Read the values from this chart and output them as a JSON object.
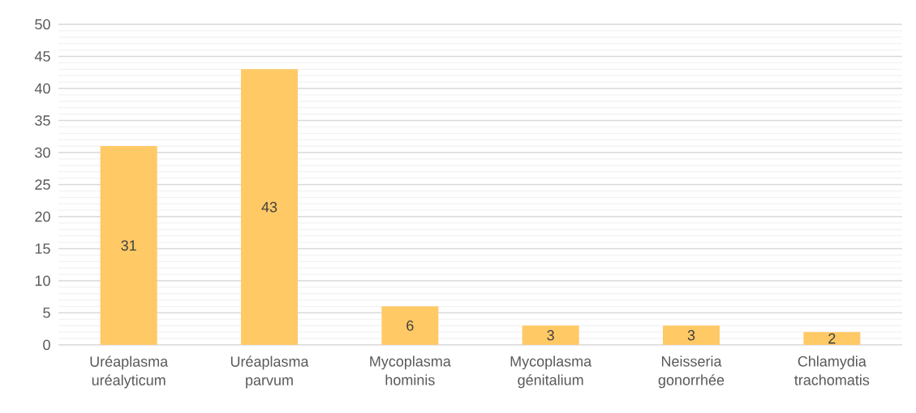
{
  "chart_data": {
    "type": "bar",
    "categories": [
      "Uréaplasma uréalyticum",
      "Uréaplasma parvum",
      "Mycoplasma hominis",
      "Mycoplasma génitalium",
      "Neisseria gonorrhée",
      "Chlamydia trachomatis"
    ],
    "values": [
      31,
      43,
      6,
      3,
      3,
      2
    ],
    "color": "#FFC966",
    "ylim": [
      0,
      50
    ],
    "yticks": [
      0,
      5,
      10,
      15,
      20,
      25,
      30,
      35,
      40,
      45,
      50
    ],
    "grid": "y",
    "data_labels": true
  }
}
